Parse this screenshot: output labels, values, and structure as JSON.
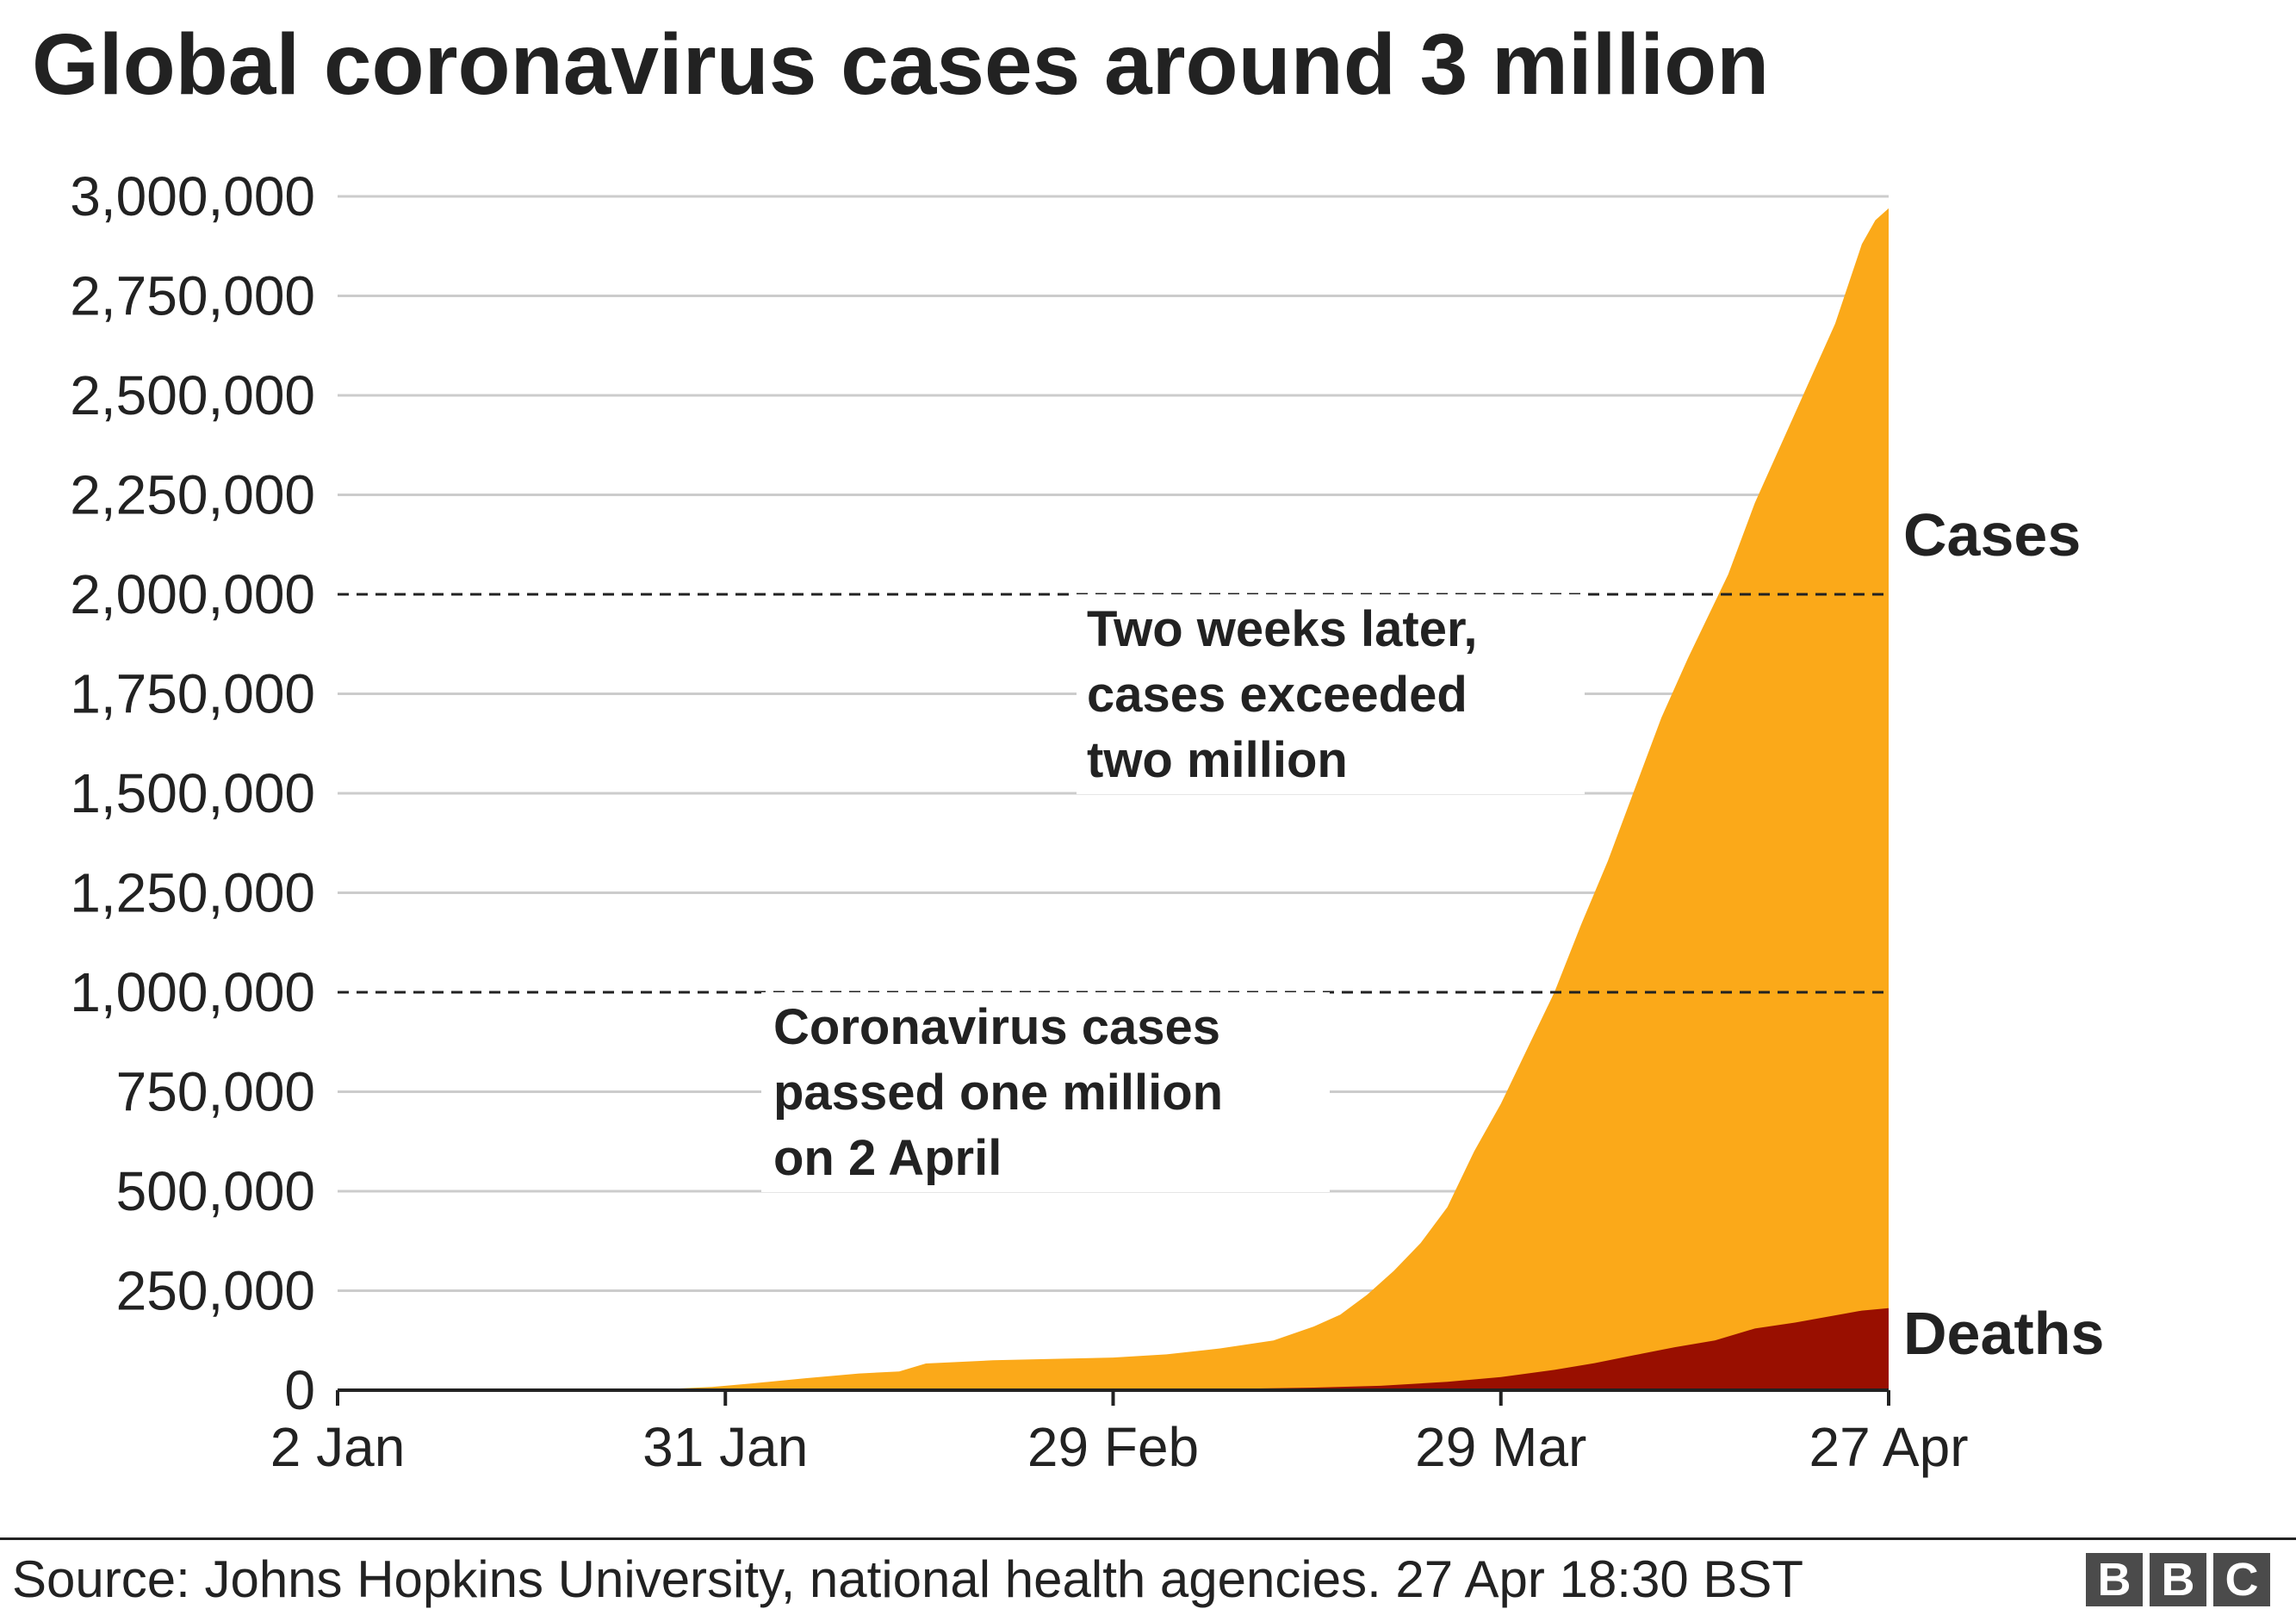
{
  "chart_data": {
    "type": "area",
    "title": "Global coronavirus cases around 3 million",
    "xlabel": "",
    "ylabel": "",
    "ylim": [
      0,
      3000000
    ],
    "yticks": [
      0,
      250000,
      500000,
      750000,
      1000000,
      1250000,
      1500000,
      1750000,
      2000000,
      2250000,
      2500000,
      2750000,
      3000000
    ],
    "ytick_labels": [
      "0",
      "250,000",
      "500,000",
      "750,000",
      "1,000,000",
      "1,250,000",
      "1,500,000",
      "1,750,000",
      "2,000,000",
      "2,250,000",
      "2,500,000",
      "2,750,000",
      "3,000,000"
    ],
    "x_range": [
      "2020-01-02",
      "2020-04-27"
    ],
    "xticks": [
      {
        "date": "2020-01-02",
        "label": "2 Jan"
      },
      {
        "date": "2020-01-31",
        "label": "31 Jan"
      },
      {
        "date": "2020-02-29",
        "label": "29 Feb"
      },
      {
        "date": "2020-03-29",
        "label": "29 Mar"
      },
      {
        "date": "2020-04-27",
        "label": "27 Apr"
      }
    ],
    "grid": true,
    "series": [
      {
        "name": "Cases",
        "color": "#fba919",
        "points": [
          [
            "2020-01-02",
            0
          ],
          [
            "2020-01-22",
            600
          ],
          [
            "2020-01-26",
            2000
          ],
          [
            "2020-01-30",
            8000
          ],
          [
            "2020-02-02",
            17000
          ],
          [
            "2020-02-06",
            30000
          ],
          [
            "2020-02-10",
            42000
          ],
          [
            "2020-02-13",
            47000
          ],
          [
            "2020-02-15",
            67000
          ],
          [
            "2020-02-20",
            75000
          ],
          [
            "2020-02-25",
            79000
          ],
          [
            "2020-02-29",
            82000
          ],
          [
            "2020-03-04",
            90000
          ],
          [
            "2020-03-08",
            105000
          ],
          [
            "2020-03-12",
            125000
          ],
          [
            "2020-03-15",
            160000
          ],
          [
            "2020-03-17",
            190000
          ],
          [
            "2020-03-19",
            240000
          ],
          [
            "2020-03-21",
            300000
          ],
          [
            "2020-03-23",
            370000
          ],
          [
            "2020-03-25",
            460000
          ],
          [
            "2020-03-27",
            600000
          ],
          [
            "2020-03-29",
            720000
          ],
          [
            "2020-03-31",
            860000
          ],
          [
            "2020-04-02",
            1000000
          ],
          [
            "2020-04-04",
            1170000
          ],
          [
            "2020-04-06",
            1330000
          ],
          [
            "2020-04-08",
            1510000
          ],
          [
            "2020-04-10",
            1690000
          ],
          [
            "2020-04-12",
            1840000
          ],
          [
            "2020-04-15",
            2050000
          ],
          [
            "2020-04-17",
            2230000
          ],
          [
            "2020-04-19",
            2380000
          ],
          [
            "2020-04-21",
            2530000
          ],
          [
            "2020-04-23",
            2680000
          ],
          [
            "2020-04-25",
            2880000
          ],
          [
            "2020-04-26",
            2940000
          ],
          [
            "2020-04-27",
            2970000
          ]
        ]
      },
      {
        "name": "Deaths",
        "color": "#990f00",
        "points": [
          [
            "2020-01-02",
            0
          ],
          [
            "2020-02-15",
            1500
          ],
          [
            "2020-03-01",
            3000
          ],
          [
            "2020-03-10",
            4000
          ],
          [
            "2020-03-15",
            6500
          ],
          [
            "2020-03-20",
            11000
          ],
          [
            "2020-03-25",
            21000
          ],
          [
            "2020-03-29",
            33000
          ],
          [
            "2020-04-02",
            51000
          ],
          [
            "2020-04-05",
            68000
          ],
          [
            "2020-04-08",
            88000
          ],
          [
            "2020-04-11",
            108000
          ],
          [
            "2020-04-14",
            125000
          ],
          [
            "2020-04-17",
            155000
          ],
          [
            "2020-04-20",
            170000
          ],
          [
            "2020-04-23",
            188000
          ],
          [
            "2020-04-25",
            200000
          ],
          [
            "2020-04-27",
            206000
          ]
        ]
      }
    ],
    "reference_lines": [
      1000000,
      2000000
    ],
    "annotations": [
      {
        "lines": [
          "Two weeks later,",
          "cases exceeded",
          "two million"
        ]
      },
      {
        "lines": [
          "Coronavirus cases",
          "passed one million",
          "on 2 April"
        ]
      }
    ]
  },
  "source": "Source: Johns Hopkins University, national health agencies. 27 Apr 18:30 BST",
  "logo": [
    "B",
    "B",
    "C"
  ]
}
